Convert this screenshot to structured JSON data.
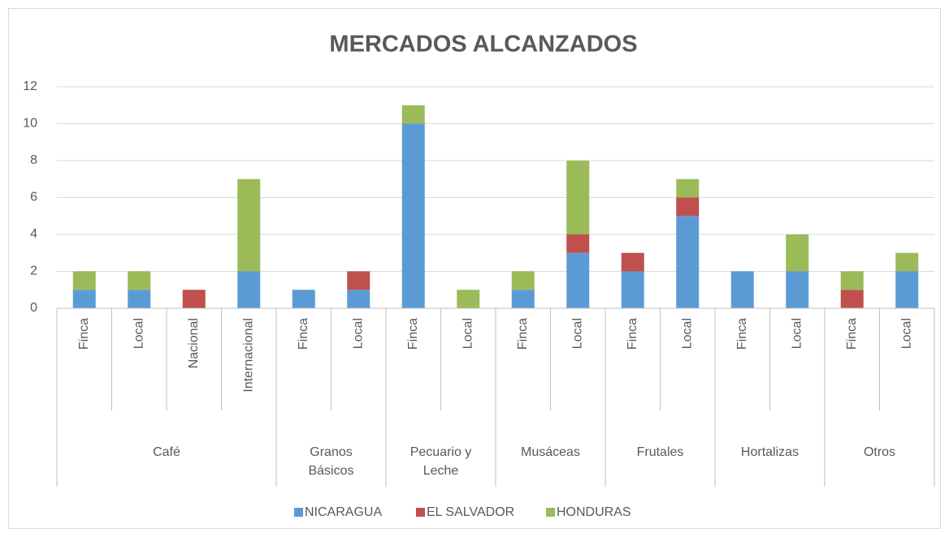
{
  "chart_data": {
    "type": "stacked_bar",
    "title": "MERCADOS ALCANZADOS",
    "groups": [
      {
        "name": "Café",
        "categories": [
          "Finca",
          "Local",
          "Nacional",
          "Internacional"
        ]
      },
      {
        "name": "Granos Básicos",
        "categories": [
          "Finca",
          "Local"
        ]
      },
      {
        "name": "Pecuario y Leche",
        "categories": [
          "Finca",
          "Local"
        ]
      },
      {
        "name": "Musáceas",
        "categories": [
          "Finca",
          "Local"
        ]
      },
      {
        "name": "Frutales",
        "categories": [
          "Finca",
          "Local"
        ]
      },
      {
        "name": "Hortalizas",
        "categories": [
          "Finca",
          "Local"
        ]
      },
      {
        "name": "Otros",
        "categories": [
          "Finca",
          "Local"
        ]
      }
    ],
    "series": [
      {
        "name": "NICARAGUA",
        "color": "#5b9bd5",
        "values": [
          1,
          1,
          0,
          2,
          1,
          1,
          10,
          0,
          1,
          3,
          2,
          5,
          2,
          2,
          0,
          2
        ]
      },
      {
        "name": "EL SALVADOR",
        "color": "#c0504d",
        "values": [
          0,
          0,
          1,
          0,
          0,
          1,
          0,
          0,
          0,
          1,
          1,
          1,
          0,
          0,
          1,
          0
        ]
      },
      {
        "name": "HONDURAS",
        "color": "#9bbb59",
        "values": [
          1,
          1,
          0,
          5,
          0,
          0,
          1,
          1,
          1,
          4,
          0,
          1,
          0,
          2,
          1,
          1
        ]
      }
    ],
    "ylim": [
      0,
      12
    ],
    "yticks": [
      0,
      2,
      4,
      6,
      8,
      10,
      12
    ],
    "grid": true,
    "legend": "bottom"
  }
}
